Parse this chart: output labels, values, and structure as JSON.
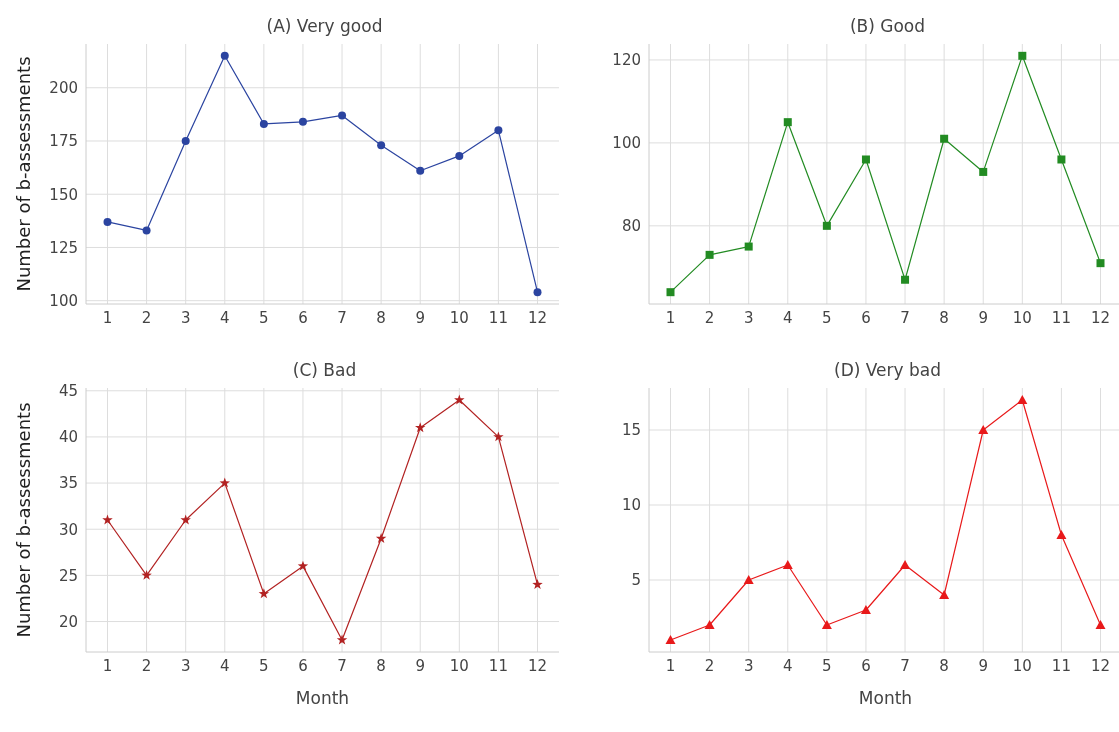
{
  "chart_data": [
    {
      "type": "line",
      "title": "(A) Very good",
      "ylabel": "Number of b-assessments",
      "x": [
        1,
        2,
        3,
        4,
        5,
        6,
        7,
        8,
        9,
        10,
        11,
        12
      ],
      "xlim": [
        0.45,
        12.55
      ],
      "xticks": [
        1,
        2,
        3,
        4,
        5,
        6,
        7,
        8,
        9,
        10,
        11,
        12
      ],
      "ylim": [
        98.45,
        220.55
      ],
      "yticks": [
        100,
        125,
        150,
        175,
        200
      ],
      "grid": true,
      "marker": "circle",
      "line_style": "solid",
      "series": [
        {
          "color": "#2b44a0",
          "values": [
            137,
            133,
            175,
            215,
            183,
            184,
            187,
            173,
            161,
            168,
            180,
            104
          ]
        }
      ]
    },
    {
      "type": "line",
      "title": "(B) Good",
      "x": [
        1,
        2,
        3,
        4,
        5,
        6,
        7,
        8,
        9,
        10,
        11,
        12
      ],
      "xlim": [
        0.45,
        12.55
      ],
      "xticks": [
        1,
        2,
        3,
        4,
        5,
        6,
        7,
        8,
        9,
        10,
        11,
        12
      ],
      "ylim": [
        61.15,
        123.85
      ],
      "yticks": [
        80,
        100,
        120
      ],
      "grid": true,
      "marker": "square",
      "line_style": "solid",
      "series": [
        {
          "color": "#228b22",
          "values": [
            64,
            73,
            75,
            105,
            80,
            96,
            67,
            101,
            93,
            121,
            96,
            71
          ]
        }
      ]
    },
    {
      "type": "line",
      "title": "(C) Bad",
      "xlabel": "Month",
      "ylabel": "Number of b-assessments",
      "x": [
        1,
        2,
        3,
        4,
        5,
        6,
        7,
        8,
        9,
        10,
        11,
        12
      ],
      "xlim": [
        0.45,
        12.55
      ],
      "xticks": [
        1,
        2,
        3,
        4,
        5,
        6,
        7,
        8,
        9,
        10,
        11,
        12
      ],
      "ylim": [
        16.7,
        45.3
      ],
      "yticks": [
        20,
        25,
        30,
        35,
        40,
        45
      ],
      "grid": true,
      "marker": "star",
      "line_style": "solid",
      "series": [
        {
          "color": "#b22222",
          "values": [
            31,
            25,
            31,
            35,
            23,
            26,
            18,
            29,
            41,
            44,
            40,
            24
          ]
        }
      ]
    },
    {
      "type": "line",
      "title": "(D) Very bad",
      "xlabel": "Month",
      "x": [
        1,
        2,
        3,
        4,
        5,
        6,
        7,
        8,
        9,
        10,
        11,
        12
      ],
      "xlim": [
        0.45,
        12.55
      ],
      "xticks": [
        1,
        2,
        3,
        4,
        5,
        6,
        7,
        8,
        9,
        10,
        11,
        12
      ],
      "ylim": [
        0.2,
        17.8
      ],
      "yticks": [
        5,
        10,
        15
      ],
      "grid": true,
      "marker": "triangle",
      "line_style": "solid",
      "series": [
        {
          "color": "#e8191a",
          "values": [
            1,
            2,
            5,
            6,
            2,
            3,
            6,
            4,
            15,
            17,
            8,
            2
          ]
        }
      ]
    }
  ]
}
